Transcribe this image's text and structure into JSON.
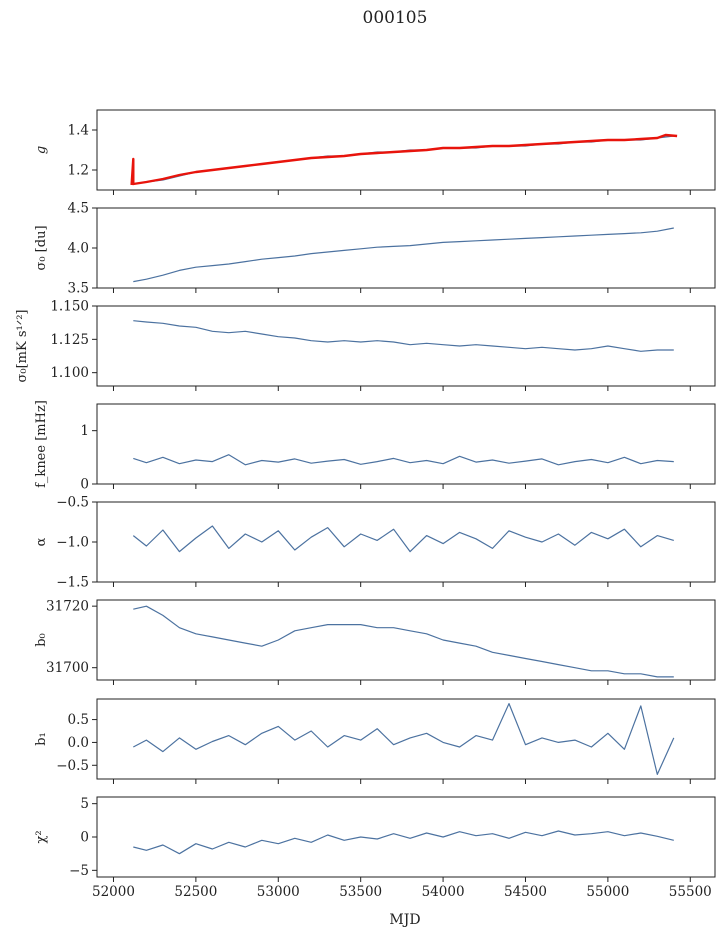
{
  "figure": {
    "title": "000105",
    "xlabel": "MJD"
  },
  "chart_data": {
    "type": "line",
    "title": "000105",
    "xlabel": "MJD",
    "xlim": [
      51900,
      55650
    ],
    "xticks": [
      52000,
      52500,
      53000,
      53500,
      54000,
      54500,
      55000,
      55500
    ],
    "xtick_labels": [
      "52000",
      "52500",
      "53000",
      "53500",
      "54000",
      "54500",
      "55000",
      "55500"
    ],
    "series_color": "#4c72a0",
    "overlay_color": "#e8140c",
    "panels": [
      {
        "key": "g",
        "ylabel": "g",
        "ylim": [
          1.1,
          1.5
        ],
        "yticks": [
          1.2,
          1.4
        ],
        "ytick_labels": [
          "1.2",
          "1.4"
        ],
        "series": [
          {
            "x": [
              52120,
              52200,
              52300,
              52400,
              52500,
              52600,
              52700,
              52800,
              52900,
              53000,
              53100,
              53200,
              53300,
              53400,
              53500,
              53600,
              53700,
              53800,
              53900,
              54000,
              54100,
              54200,
              54300,
              54400,
              54500,
              54600,
              54700,
              54800,
              54900,
              55000,
              55100,
              55200,
              55300,
              55400
            ],
            "y": [
              1.13,
              1.14,
              1.15,
              1.17,
              1.19,
              1.2,
              1.21,
              1.22,
              1.23,
              1.24,
              1.25,
              1.26,
              1.27,
              1.27,
              1.28,
              1.29,
              1.29,
              1.3,
              1.3,
              1.31,
              1.31,
              1.31,
              1.32,
              1.32,
              1.32,
              1.33,
              1.33,
              1.34,
              1.34,
              1.35,
              1.35,
              1.35,
              1.36,
              1.37
            ]
          }
        ],
        "overlay": {
          "x": [
            52110,
            52120,
            52120,
            52200,
            52300,
            52400,
            52500,
            52600,
            52700,
            52800,
            52900,
            53000,
            53100,
            53200,
            53300,
            53400,
            53500,
            53600,
            53700,
            53800,
            53900,
            54000,
            54100,
            54200,
            54300,
            54400,
            54500,
            54600,
            54700,
            54800,
            54900,
            55000,
            55100,
            55200,
            55300,
            55350,
            55420
          ],
          "y": [
            1.125,
            1.255,
            1.13,
            1.14,
            1.155,
            1.175,
            1.19,
            1.2,
            1.21,
            1.22,
            1.23,
            1.24,
            1.25,
            1.26,
            1.265,
            1.27,
            1.28,
            1.285,
            1.29,
            1.295,
            1.3,
            1.31,
            1.31,
            1.315,
            1.32,
            1.32,
            1.325,
            1.33,
            1.335,
            1.34,
            1.345,
            1.35,
            1.35,
            1.355,
            1.36,
            1.375,
            1.37
          ]
        }
      },
      {
        "key": "sigma0",
        "ylabel": "σ₀ [du]",
        "ylim": [
          3.5,
          4.5
        ],
        "yticks": [
          3.5,
          4.0,
          4.5
        ],
        "ytick_labels": [
          "3.5",
          "4.0",
          "4.5"
        ],
        "series": [
          {
            "x": [
              52120,
              52200,
              52300,
              52400,
              52500,
              52600,
              52700,
              52800,
              52900,
              53000,
              53100,
              53200,
              53300,
              53400,
              53500,
              53600,
              53700,
              53800,
              53900,
              54000,
              54100,
              54200,
              54300,
              54400,
              54500,
              54600,
              54700,
              54800,
              54900,
              55000,
              55100,
              55200,
              55300,
              55400
            ],
            "y": [
              3.58,
              3.61,
              3.66,
              3.72,
              3.76,
              3.78,
              3.8,
              3.83,
              3.86,
              3.88,
              3.9,
              3.93,
              3.95,
              3.97,
              3.99,
              4.01,
              4.02,
              4.03,
              4.05,
              4.07,
              4.08,
              4.09,
              4.1,
              4.11,
              4.12,
              4.13,
              4.14,
              4.15,
              4.16,
              4.17,
              4.18,
              4.19,
              4.21,
              4.25
            ]
          }
        ]
      },
      {
        "key": "sigma0_mks",
        "ylabel": "σ₀[mK s¹ᐟ²]",
        "ylim": [
          1.09,
          1.15
        ],
        "yticks": [
          1.1,
          1.125,
          1.15
        ],
        "ytick_labels": [
          "1.100",
          "1.125",
          "1.150"
        ],
        "series": [
          {
            "x": [
              52120,
              52200,
              52300,
              52400,
              52500,
              52600,
              52700,
              52800,
              52900,
              53000,
              53100,
              53200,
              53300,
              53400,
              53500,
              53600,
              53700,
              53800,
              53900,
              54000,
              54100,
              54200,
              54300,
              54400,
              54500,
              54600,
              54700,
              54800,
              54900,
              55000,
              55100,
              55200,
              55300,
              55400
            ],
            "y": [
              1.139,
              1.138,
              1.137,
              1.135,
              1.134,
              1.131,
              1.13,
              1.131,
              1.129,
              1.127,
              1.126,
              1.124,
              1.123,
              1.124,
              1.123,
              1.124,
              1.123,
              1.121,
              1.122,
              1.121,
              1.12,
              1.121,
              1.12,
              1.119,
              1.118,
              1.119,
              1.118,
              1.117,
              1.118,
              1.12,
              1.118,
              1.116,
              1.117,
              1.117
            ]
          }
        ]
      },
      {
        "key": "fknee",
        "ylabel": "f_knee [mHz]",
        "ylim": [
          0,
          1.5
        ],
        "yticks": [
          0,
          1
        ],
        "ytick_labels": [
          "0",
          "1"
        ],
        "series": [
          {
            "x": [
              52120,
              52200,
              52300,
              52400,
              52500,
              52600,
              52700,
              52800,
              52900,
              53000,
              53100,
              53200,
              53300,
              53400,
              53500,
              53600,
              53700,
              53800,
              53900,
              54000,
              54100,
              54200,
              54300,
              54400,
              54500,
              54600,
              54700,
              54800,
              54900,
              55000,
              55100,
              55200,
              55300,
              55400
            ],
            "y": [
              0.48,
              0.4,
              0.5,
              0.38,
              0.45,
              0.42,
              0.55,
              0.36,
              0.44,
              0.41,
              0.47,
              0.39,
              0.43,
              0.46,
              0.37,
              0.42,
              0.48,
              0.4,
              0.44,
              0.38,
              0.52,
              0.41,
              0.45,
              0.39,
              0.43,
              0.47,
              0.36,
              0.42,
              0.46,
              0.4,
              0.5,
              0.38,
              0.44,
              0.42
            ]
          }
        ]
      },
      {
        "key": "alpha",
        "ylabel": "α",
        "ylim": [
          -1.5,
          -0.5
        ],
        "yticks": [
          -1.5,
          -1.0,
          -0.5
        ],
        "ytick_labels": [
          "−1.5",
          "−1.0",
          "−0.5"
        ],
        "series": [
          {
            "x": [
              52120,
              52200,
              52300,
              52400,
              52500,
              52600,
              52700,
              52800,
              52900,
              53000,
              53100,
              53200,
              53300,
              53400,
              53500,
              53600,
              53700,
              53800,
              53900,
              54000,
              54100,
              54200,
              54300,
              54400,
              54500,
              54600,
              54700,
              54800,
              54900,
              55000,
              55100,
              55200,
              55300,
              55400
            ],
            "y": [
              -0.92,
              -1.05,
              -0.85,
              -1.12,
              -0.95,
              -0.8,
              -1.08,
              -0.9,
              -1.0,
              -0.86,
              -1.1,
              -0.94,
              -0.82,
              -1.06,
              -0.9,
              -0.98,
              -0.84,
              -1.12,
              -0.92,
              -1.02,
              -0.88,
              -0.96,
              -1.08,
              -0.86,
              -0.94,
              -1.0,
              -0.9,
              -1.04,
              -0.88,
              -0.96,
              -0.84,
              -1.06,
              -0.92,
              -0.98
            ]
          }
        ]
      },
      {
        "key": "b0",
        "ylabel": "b₀",
        "ylim": [
          31696,
          31722
        ],
        "yticks": [
          31700,
          31720
        ],
        "ytick_labels": [
          "31700",
          "31720"
        ],
        "series": [
          {
            "x": [
              52120,
              52200,
              52300,
              52400,
              52500,
              52600,
              52700,
              52800,
              52900,
              53000,
              53100,
              53200,
              53300,
              53400,
              53500,
              53600,
              53700,
              53800,
              53900,
              54000,
              54100,
              54200,
              54300,
              54400,
              54500,
              54600,
              54700,
              54800,
              54900,
              55000,
              55100,
              55200,
              55300,
              55400
            ],
            "y": [
              31719,
              31720,
              31717,
              31713,
              31711,
              31710,
              31709,
              31708,
              31707,
              31709,
              31712,
              31713,
              31714,
              31714,
              31714,
              31713,
              31713,
              31712,
              31711,
              31709,
              31708,
              31707,
              31705,
              31704,
              31703,
              31702,
              31701,
              31700,
              31699,
              31699,
              31698,
              31698,
              31697,
              31697
            ]
          }
        ]
      },
      {
        "key": "b1",
        "ylabel": "b₁",
        "ylim": [
          -0.8,
          0.95
        ],
        "yticks": [
          -0.5,
          0.0,
          0.5
        ],
        "ytick_labels": [
          "−0.5",
          "0.0",
          "0.5"
        ],
        "series": [
          {
            "x": [
              52120,
              52200,
              52300,
              52400,
              52500,
              52600,
              52700,
              52800,
              52900,
              53000,
              53100,
              53200,
              53300,
              53400,
              53500,
              53600,
              53700,
              53800,
              53900,
              54000,
              54100,
              54200,
              54300,
              54400,
              54500,
              54600,
              54700,
              54800,
              54900,
              55000,
              55100,
              55200,
              55300,
              55400
            ],
            "y": [
              -0.1,
              0.05,
              -0.2,
              0.1,
              -0.15,
              0.02,
              0.15,
              -0.05,
              0.2,
              0.35,
              0.05,
              0.25,
              -0.1,
              0.15,
              0.05,
              0.3,
              -0.05,
              0.1,
              0.2,
              0.0,
              -0.1,
              0.15,
              0.05,
              0.85,
              -0.05,
              0.1,
              0.0,
              0.05,
              -0.1,
              0.2,
              -0.15,
              0.8,
              -0.7,
              0.1
            ]
          }
        ]
      },
      {
        "key": "chi2",
        "ylabel": "χ²",
        "ylim": [
          -6,
          6
        ],
        "yticks": [
          -5,
          0,
          5
        ],
        "ytick_labels": [
          "−5",
          "0",
          "5"
        ],
        "series": [
          {
            "x": [
              52120,
              52200,
              52300,
              52400,
              52500,
              52600,
              52700,
              52800,
              52900,
              53000,
              53100,
              53200,
              53300,
              53400,
              53500,
              53600,
              53700,
              53800,
              53900,
              54000,
              54100,
              54200,
              54300,
              54400,
              54500,
              54600,
              54700,
              54800,
              54900,
              55000,
              55100,
              55200,
              55300,
              55400
            ],
            "y": [
              -1.5,
              -2.0,
              -1.2,
              -2.5,
              -1.0,
              -1.8,
              -0.8,
              -1.5,
              -0.5,
              -1.0,
              -0.2,
              -0.8,
              0.3,
              -0.5,
              0.0,
              -0.3,
              0.5,
              -0.2,
              0.6,
              0.0,
              0.8,
              0.2,
              0.5,
              -0.2,
              0.7,
              0.2,
              0.9,
              0.3,
              0.5,
              0.8,
              0.2,
              0.6,
              0.1,
              -0.5
            ]
          }
        ]
      }
    ]
  }
}
